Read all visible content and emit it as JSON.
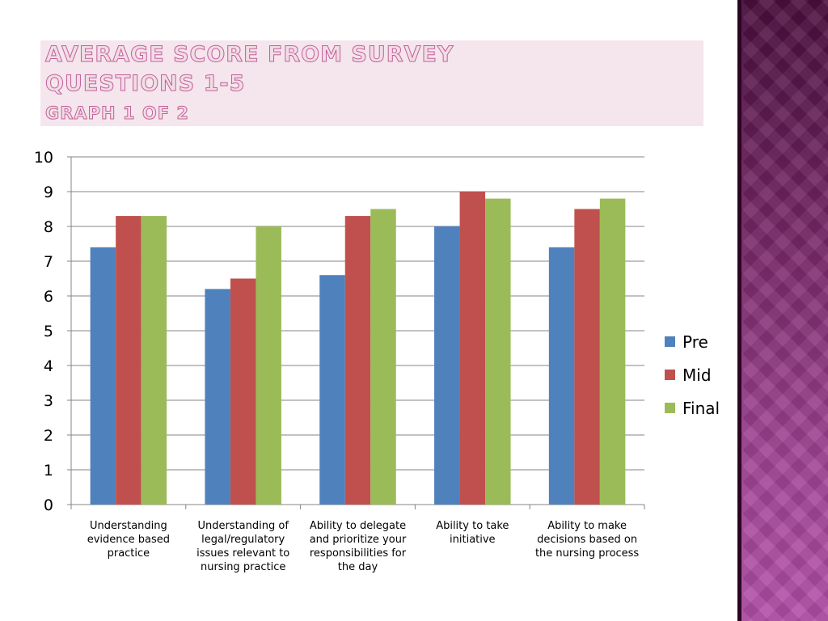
{
  "slide": {
    "title_line1": "Average score from survey",
    "title_line2": "Questions 1-5",
    "title_line3": "Graph 1 of 2"
  },
  "colors": {
    "pre": "#4f81bd",
    "mid": "#c0504d",
    "final": "#9bbb59",
    "title_fill": "#f2dce6",
    "title_outline": "#c2609a",
    "title_bg": "#f4e6ec",
    "gridline": "#868686",
    "side_panel": "#7a2a6a"
  },
  "chart_data": {
    "type": "bar",
    "categories": [
      "Understanding evidence based practice",
      "Understanding of legal/regulatory issues relevant to nursing practice",
      "Ability to delegate and prioritize your responsibilities for the day",
      "Ability to take initiative",
      "Ability to make decisions based on the nursing process"
    ],
    "category_label_lines": [
      [
        "Understanding",
        "evidence based",
        "practice"
      ],
      [
        "Understanding of",
        "legal/regulatory",
        "issues relevant to",
        "nursing practice"
      ],
      [
        "Ability to delegate",
        "and prioritize your",
        "responsibilities for",
        "the day"
      ],
      [
        "Ability to take",
        "initiative"
      ],
      [
        "Ability to make",
        "decisions based on",
        "the nursing process"
      ]
    ],
    "series": [
      {
        "name": "Pre",
        "values": [
          7.4,
          6.2,
          6.6,
          8.0,
          7.4
        ]
      },
      {
        "name": "Mid",
        "values": [
          8.3,
          6.5,
          8.3,
          9.0,
          8.5
        ]
      },
      {
        "name": "Final",
        "values": [
          8.3,
          8.0,
          8.5,
          8.8,
          8.8
        ]
      }
    ],
    "ylim": [
      0,
      10
    ],
    "yticks": [
      0,
      1,
      2,
      3,
      4,
      5,
      6,
      7,
      8,
      9,
      10
    ],
    "grid": true,
    "legend_position": "right"
  }
}
